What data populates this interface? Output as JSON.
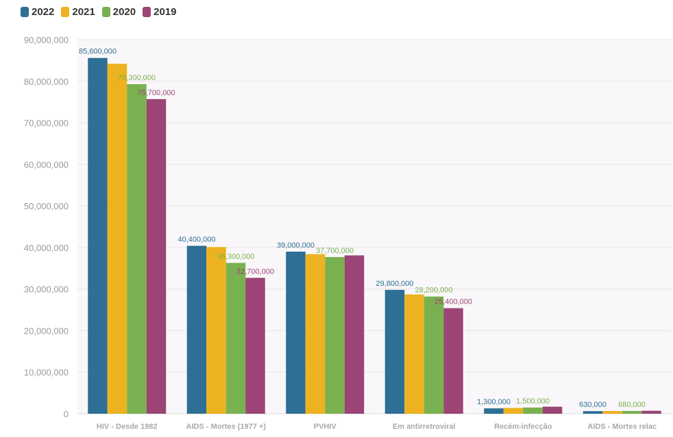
{
  "chart_data": {
    "type": "bar",
    "categories": [
      "HIV - Desde 1982",
      "AIDS - Mortes (1977 +)",
      "PVHIV",
      "Em antirretroviral",
      "Recém-infecção",
      "AIDS - Mortes relac"
    ],
    "series": [
      {
        "name": "2022",
        "color": "#2e6f96",
        "values": [
          85600000,
          40400000,
          39000000,
          29800000,
          1300000,
          630000
        ]
      },
      {
        "name": "2021",
        "color": "#ecb21f",
        "values": [
          84200000,
          40100000,
          38400000,
          28700000,
          1400000,
          650000
        ]
      },
      {
        "name": "2020",
        "color": "#7ab150",
        "values": [
          79300000,
          36300000,
          37700000,
          28200000,
          1500000,
          680000
        ]
      },
      {
        "name": "2019",
        "color": "#9b4475",
        "values": [
          75700000,
          32700000,
          38100000,
          25400000,
          1700000,
          720000
        ]
      }
    ],
    "data_labels": [
      {
        "series": 0,
        "category": 0,
        "text": "85,600,000"
      },
      {
        "series": 2,
        "category": 0,
        "text": "79,300,000"
      },
      {
        "series": 3,
        "category": 0,
        "text": "75,700,000"
      },
      {
        "series": 0,
        "category": 1,
        "text": "40,400,000"
      },
      {
        "series": 2,
        "category": 1,
        "text": "36,300,000"
      },
      {
        "series": 3,
        "category": 1,
        "text": "32,700,000"
      },
      {
        "series": 0,
        "category": 2,
        "text": "39,000,000"
      },
      {
        "series": 2,
        "category": 2,
        "text": "37,700,000"
      },
      {
        "series": 0,
        "category": 3,
        "text": "29,800,000"
      },
      {
        "series": 2,
        "category": 3,
        "text": "28,200,000"
      },
      {
        "series": 3,
        "category": 3,
        "text": "25,400,000"
      },
      {
        "series": 0,
        "category": 4,
        "text": "1,300,000"
      },
      {
        "series": 2,
        "category": 4,
        "text": "1,500,000"
      },
      {
        "series": 0,
        "category": 5,
        "text": "630,000"
      },
      {
        "series": 2,
        "category": 5,
        "text": "680,000"
      }
    ],
    "yticks": [
      "0",
      "10,000,000",
      "20,000,000",
      "30,000,000",
      "40,000,000",
      "50,000,000",
      "60,000,000",
      "70,000,000",
      "80,000,000",
      "90,000,000"
    ],
    "ylim": [
      0,
      90000000
    ],
    "grid": true,
    "legend_position": "top-left",
    "title": "",
    "xlabel": "",
    "ylabel": ""
  }
}
